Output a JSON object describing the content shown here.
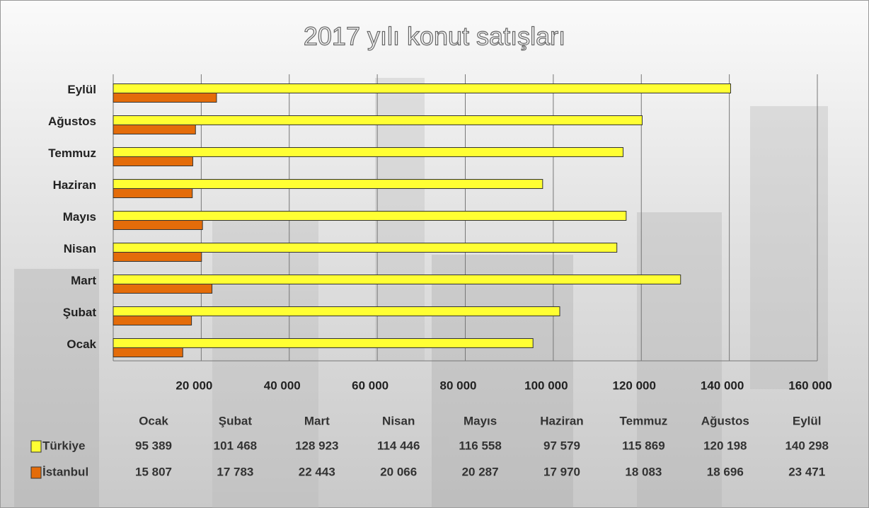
{
  "chart_data": {
    "type": "bar",
    "orientation": "horizontal",
    "title": "2017 yılı konut satışları",
    "categories": [
      "Ocak",
      "Şubat",
      "Mart",
      "Nisan",
      "Mayıs",
      "Haziran",
      "Temmuz",
      "Ağustos",
      "Eylül"
    ],
    "series": [
      {
        "name": "Türkiye",
        "color": "#ffff33",
        "values": [
          95389,
          101468,
          128923,
          114446,
          116558,
          97579,
          115869,
          120198,
          140298
        ],
        "value_labels": [
          "95 389",
          "101 468",
          "128 923",
          "114 446",
          "116 558",
          "97 579",
          "115 869",
          "120 198",
          "140 298"
        ]
      },
      {
        "name": "İstanbul",
        "color": "#e46c0a",
        "values": [
          15807,
          17783,
          22443,
          20066,
          20287,
          17970,
          18083,
          18696,
          23471
        ],
        "value_labels": [
          "15 807",
          "17 783",
          "22 443",
          "20 066",
          "20 287",
          "17 970",
          "18 083",
          "18 696",
          "23 471"
        ]
      }
    ],
    "xlim": [
      0,
      160000
    ],
    "xticks": [
      {
        "value": 20000,
        "label": "20 000"
      },
      {
        "value": 40000,
        "label": "40 000"
      },
      {
        "value": 60000,
        "label": "60 000"
      },
      {
        "value": 80000,
        "label": "80 000"
      },
      {
        "value": 100000,
        "label": "100 000"
      },
      {
        "value": 120000,
        "label": "120 000"
      },
      {
        "value": 140000,
        "label": "140 000"
      },
      {
        "value": 160000,
        "label": "160 000"
      }
    ],
    "grid": true
  }
}
